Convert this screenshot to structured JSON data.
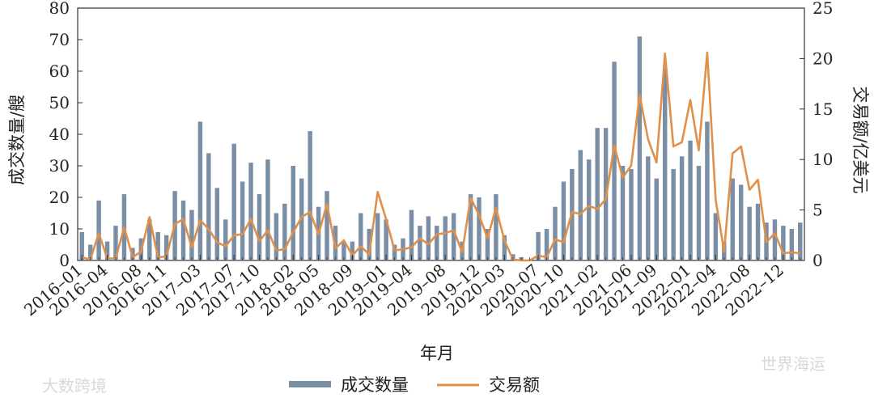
{
  "chart_data": {
    "type": "bar+line",
    "xlabel": "年月",
    "ylabel_left": "成交数量/艘",
    "ylabel_right": "交易额/亿美元",
    "ylim_left": [
      0,
      80
    ],
    "ylim_right": [
      0,
      25
    ],
    "yticks_left": [
      "0",
      "10",
      "20",
      "30",
      "40",
      "50",
      "60",
      "70",
      "80"
    ],
    "yticks_right": [
      "0",
      "5",
      "10",
      "15",
      "20",
      "25"
    ],
    "bar_color": "#7a8ea6",
    "line_color": "#e0904a",
    "series": [
      {
        "name": "成交数量",
        "kind": "bar",
        "axis": "left",
        "values": [
          9,
          5,
          19,
          6,
          11,
          21,
          4,
          7,
          13,
          9,
          8,
          22,
          19,
          16,
          44,
          34,
          23,
          13,
          37,
          25,
          31,
          21,
          32,
          15,
          18,
          30,
          26,
          41,
          17,
          22,
          11,
          6,
          6,
          15,
          10,
          15,
          13,
          5,
          7,
          16,
          11,
          14,
          11,
          14,
          15,
          6,
          21,
          20,
          10,
          21,
          8,
          2,
          1,
          0,
          9,
          10,
          17,
          25,
          29,
          35,
          32,
          42,
          42,
          63,
          30,
          29,
          71,
          33,
          26,
          61,
          29,
          33,
          38,
          30,
          44,
          15,
          6,
          26,
          24,
          17,
          18,
          12,
          13,
          11,
          10,
          12
        ]
      },
      {
        "name": "交易额",
        "kind": "line",
        "axis": "right",
        "values": [
          0.3,
          0.1,
          2.7,
          0.2,
          0.2,
          3.3,
          0.3,
          0.9,
          4.3,
          0.3,
          0.4,
          3.6,
          4.1,
          1.3,
          4.0,
          3.1,
          1.8,
          1.4,
          2.5,
          2.6,
          4.1,
          1.9,
          3.0,
          1.0,
          1.1,
          2.8,
          4.3,
          4.8,
          2.6,
          5.6,
          1.2,
          2.0,
          0.5,
          1.4,
          0.6,
          6.8,
          4.1,
          1.0,
          1.1,
          1.3,
          2.2,
          1.6,
          2.6,
          2.7,
          3.0,
          0.8,
          6.2,
          4.5,
          2.2,
          5.2,
          2.0,
          0.1,
          0.0,
          0.0,
          0.5,
          0.3,
          2.1,
          1.8,
          4.8,
          4.6,
          5.4,
          5.1,
          6.1,
          11.4,
          8.2,
          9.4,
          16.4,
          12.0,
          9.7,
          20.5,
          11.3,
          11.7,
          15.9,
          10.9,
          20.6,
          6.0,
          0.9,
          10.6,
          11.3,
          7.0,
          8.0,
          1.8,
          2.7,
          0.7,
          0.8,
          0.7
        ]
      }
    ],
    "x_tick_labels": [
      "2016–01",
      "2016–04",
      "2016–08",
      "2016–11",
      "2017–03",
      "2017–07",
      "2017–10",
      "2018–02",
      "2018–05",
      "2018–09",
      "2019–01",
      "2019–04",
      "2019–08",
      "2019–12",
      "2020–03",
      "2020–07",
      "2020–10",
      "2021–02",
      "2021–06",
      "2021–09",
      "2022–01",
      "2022–04",
      "2022–08",
      "2022–12"
    ],
    "legend_position": "bottom-center",
    "grid": false
  },
  "watermarks": {
    "left": "大数跨境",
    "right": "世界海运"
  }
}
